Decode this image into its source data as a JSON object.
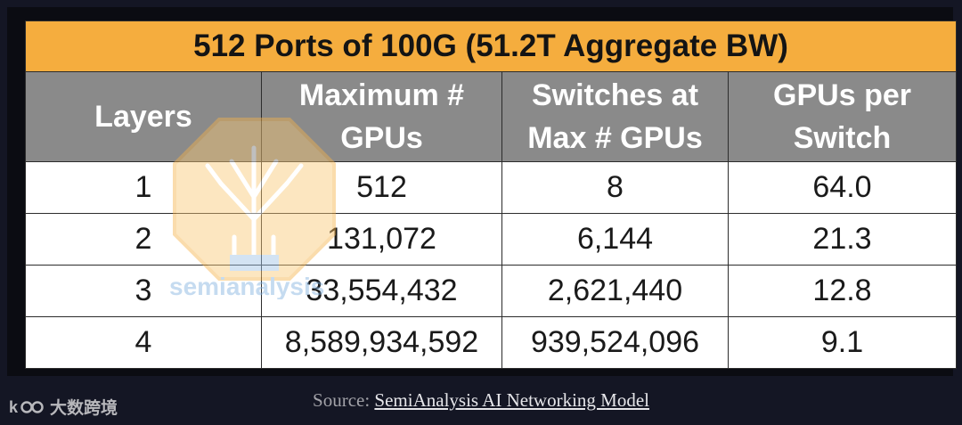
{
  "table": {
    "title": "512 Ports of 100G (51.2T Aggregate BW)",
    "headers": [
      [
        "Layers"
      ],
      [
        "Maximum #",
        "GPUs"
      ],
      [
        "Switches at",
        "Max # GPUs"
      ],
      [
        "GPUs per",
        "Switch"
      ]
    ],
    "rows": [
      [
        "1",
        "512",
        "8",
        "64.0"
      ],
      [
        "2",
        "131,072",
        "6,144",
        "21.3"
      ],
      [
        "3",
        "33,554,432",
        "2,621,440",
        "12.8"
      ],
      [
        "4",
        "8,589,934,592",
        "939,524,096",
        "9.1"
      ]
    ]
  },
  "watermark": {
    "text": "semianalysis"
  },
  "source": {
    "prefix": "Source: ",
    "link_text": "SemiAnalysis AI Networking Model"
  },
  "logo": {
    "text": "大数跨境",
    "icon": "kr-logo-icon"
  },
  "colors": {
    "title_bg": "#f5ad3e",
    "header_bg": "#8a8a8a",
    "page_bg": "#141624"
  }
}
